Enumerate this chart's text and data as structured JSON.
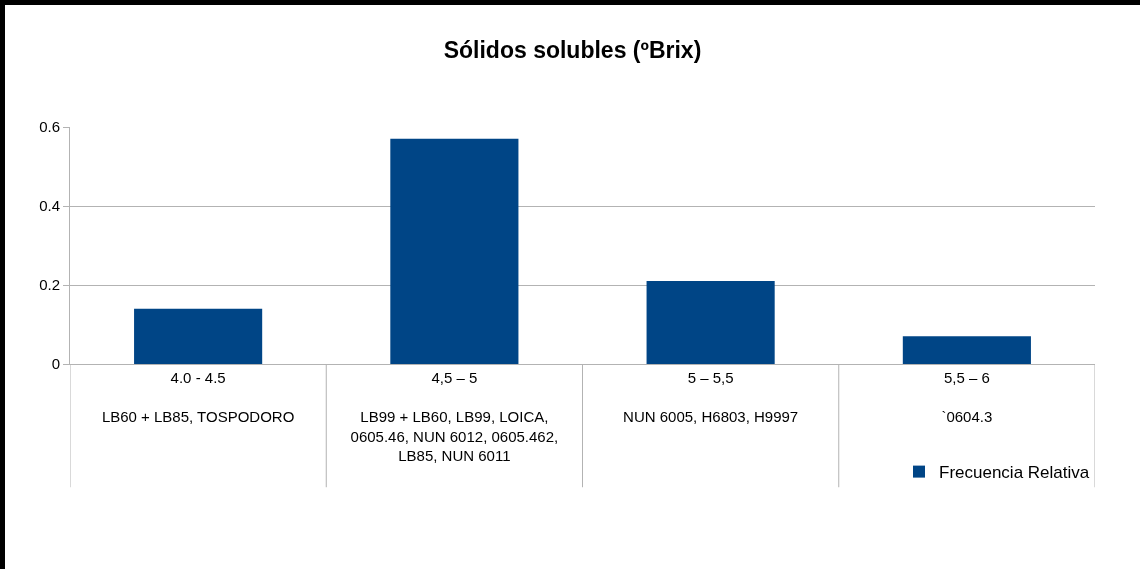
{
  "chart_data": {
    "type": "bar",
    "title": "Sólidos solubles (ºBrix)",
    "categories": [
      "4.0 - 4.5\n\nLB60 + LB85, TOSPODORO",
      "4,5 – 5\n\nLB99 + LB60, LB99, LOICA,\n0605.46, NUN 6012, 0605.462,\nLB85, NUN 6011",
      "5 – 5,5\n\nNUN 6005, H6803, H9997",
      "5,5 – 6\n\n`0604.3"
    ],
    "series": [
      {
        "name": "Frecuencia Relativa",
        "color": "#004586",
        "values": [
          0.14,
          0.57,
          0.21,
          0.07
        ]
      }
    ],
    "ylim": [
      0,
      0.6
    ],
    "yticks": [
      0,
      0.2,
      0.4,
      0.6
    ],
    "grid": "y",
    "legend": "bottom right"
  }
}
